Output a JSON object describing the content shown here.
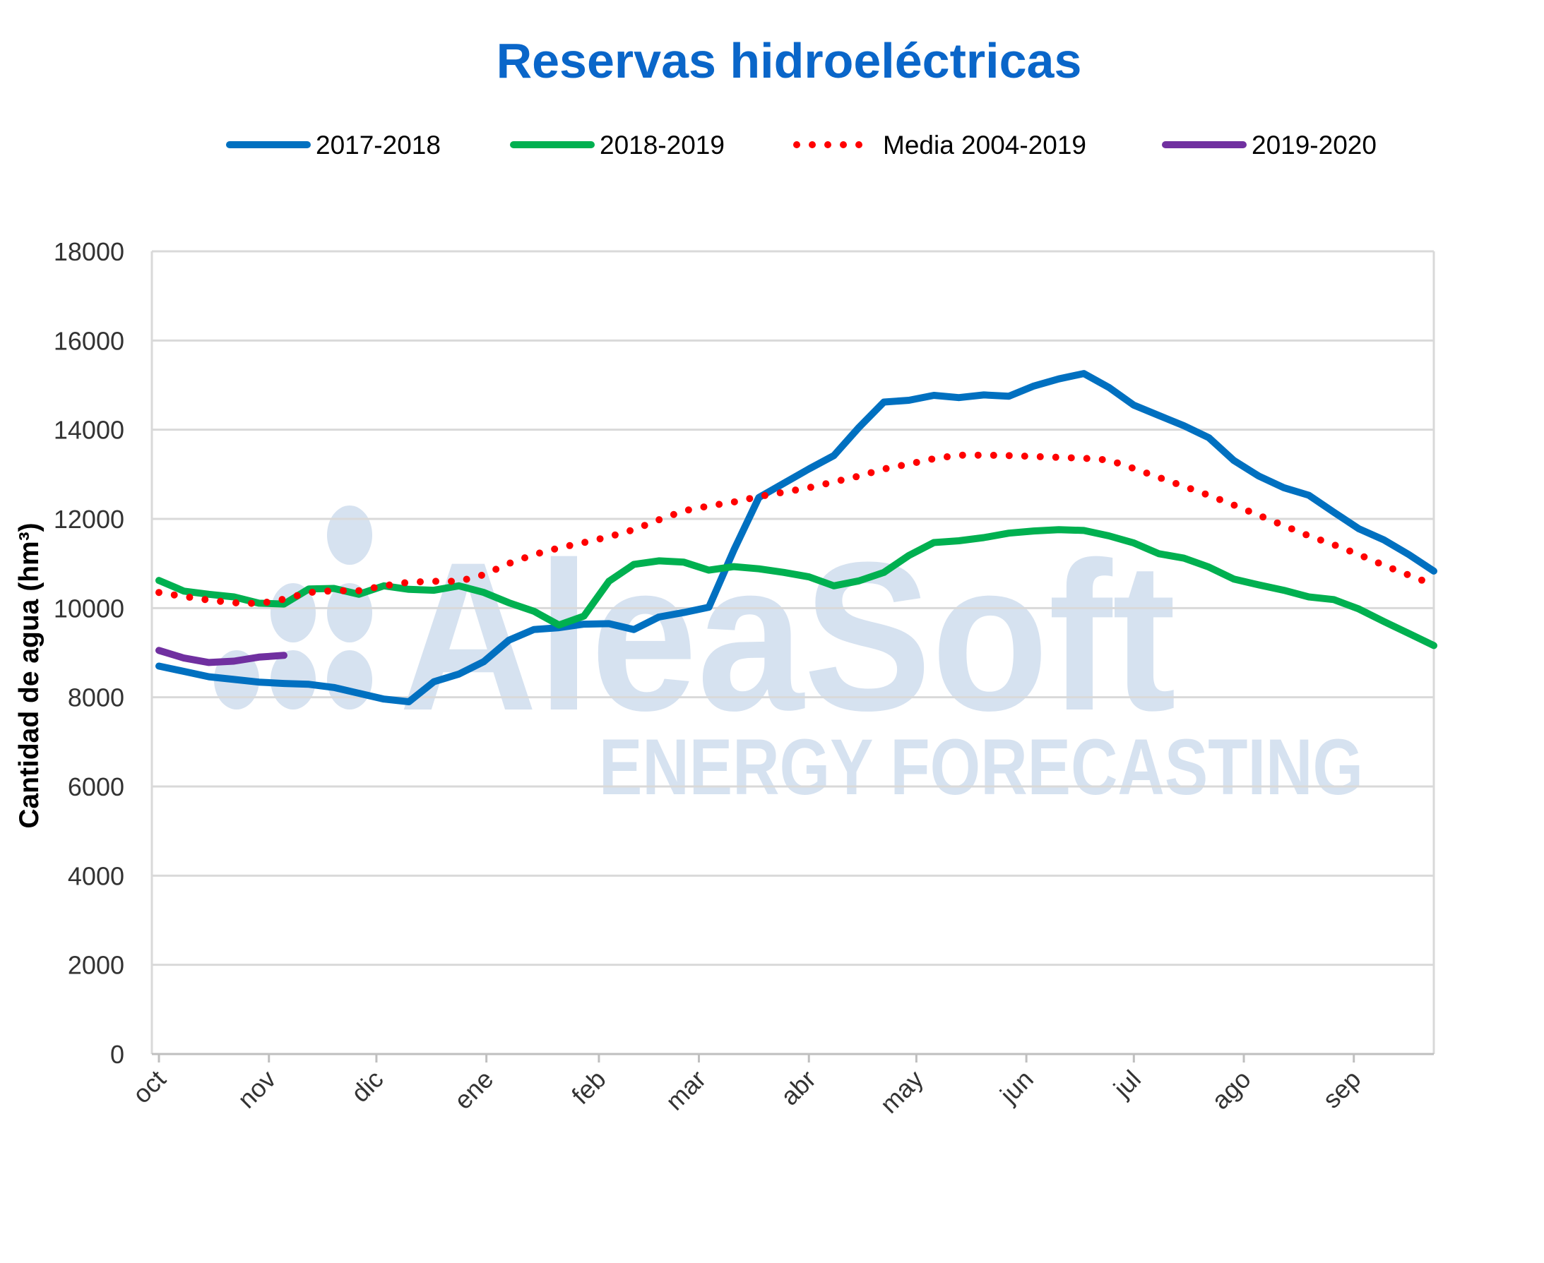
{
  "chart_data": {
    "type": "line",
    "title": "Reservas hidroeléctricas",
    "ylabel": "Cantidad de agua (hm³)",
    "xlabel": "",
    "ylim": [
      0,
      18000
    ],
    "yticks": [
      0,
      2000,
      4000,
      6000,
      8000,
      10000,
      12000,
      14000,
      16000,
      18000
    ],
    "x_label_format": "week index (0 = first week of oct, 52 weeks per season)",
    "month_ticks": [
      {
        "label": "oct",
        "week": 0
      },
      {
        "label": "nov",
        "week": 4.4
      },
      {
        "label": "dic",
        "week": 8.7
      },
      {
        "label": "ene",
        "week": 13.1
      },
      {
        "label": "feb",
        "week": 17.6
      },
      {
        "label": "mar",
        "week": 21.6
      },
      {
        "label": "abr",
        "week": 26.0
      },
      {
        "label": "may",
        "week": 30.3
      },
      {
        "label": "jun",
        "week": 34.7
      },
      {
        "label": "jul",
        "week": 39.0
      },
      {
        "label": "ago",
        "week": 43.4
      },
      {
        "label": "sep",
        "week": 47.8
      }
    ],
    "grid": true,
    "legend_position": "top",
    "series": [
      {
        "name": "2017-2018",
        "color": "#0070c0",
        "style": "solid",
        "values": [
          8700,
          8580,
          8460,
          8400,
          8340,
          8310,
          8290,
          8220,
          8090,
          7960,
          7900,
          8350,
          8520,
          8800,
          9280,
          9520,
          9560,
          9640,
          9650,
          9520,
          9800,
          9900,
          10020,
          11300,
          12480,
          12800,
          13120,
          13420,
          14050,
          14620,
          14660,
          14770,
          14720,
          14780,
          14750,
          14980,
          15140,
          15260,
          14950,
          14550,
          14320,
          14090,
          13820,
          13310,
          12960,
          12700,
          12530,
          12150,
          11780,
          11530,
          11200,
          10830
        ]
      },
      {
        "name": "2018-2019",
        "color": "#00b050",
        "style": "solid",
        "values": [
          10620,
          10380,
          10310,
          10250,
          10110,
          10090,
          10430,
          10440,
          10310,
          10500,
          10420,
          10400,
          10500,
          10350,
          10120,
          9930,
          9620,
          9820,
          10600,
          10980,
          11060,
          11030,
          10850,
          10930,
          10880,
          10800,
          10700,
          10500,
          10610,
          10800,
          11180,
          11470,
          11510,
          11580,
          11680,
          11730,
          11760,
          11740,
          11620,
          11460,
          11220,
          11120,
          10920,
          10650,
          10520,
          10400,
          10250,
          10190,
          9980,
          9700,
          9430,
          9160
        ]
      },
      {
        "name": "Media 2004-2019",
        "color": "#ff0000",
        "style": "dotted",
        "values": [
          10350,
          10260,
          10180,
          10120,
          10100,
          10200,
          10350,
          10390,
          10390,
          10500,
          10580,
          10600,
          10600,
          10750,
          11000,
          11200,
          11350,
          11470,
          11600,
          11760,
          11980,
          12180,
          12290,
          12380,
          12500,
          12600,
          12700,
          12830,
          12960,
          13120,
          13230,
          13350,
          13430,
          13430,
          13420,
          13400,
          13380,
          13360,
          13320,
          13130,
          12930,
          12730,
          12530,
          12310,
          12080,
          11850,
          11620,
          11420,
          11200,
          10960,
          10740,
          10520
        ]
      },
      {
        "name": "2019-2020",
        "color": "#7030a0",
        "style": "solid",
        "values": [
          9050,
          8880,
          8780,
          8810,
          8900,
          8940
        ]
      }
    ],
    "watermark": {
      "brand": "AleaSoft",
      "tagline": "ENERGY FORECASTING"
    }
  }
}
